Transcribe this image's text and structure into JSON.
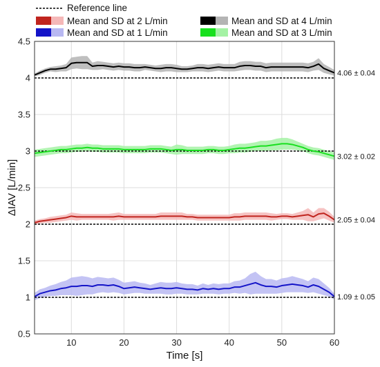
{
  "chart_data": {
    "type": "line",
    "xlabel": "Time [s]",
    "ylabel": "ΔIAV [L/min]",
    "xlim": [
      3,
      60
    ],
    "ylim": [
      0.5,
      4.5
    ],
    "xticks": [
      "10",
      "20",
      "30",
      "40",
      "50",
      "60"
    ],
    "yticks": [
      "0.5",
      "1",
      "1.5",
      "2",
      "2.5",
      "3",
      "3.5",
      "4",
      "4.5"
    ],
    "grid": true,
    "legend_position": "top",
    "reference": {
      "label": "Reference line",
      "values": [
        1,
        2,
        3,
        4
      ]
    },
    "x": [
      3,
      4,
      5,
      6,
      7,
      8,
      9,
      10,
      11,
      12,
      13,
      14,
      15,
      16,
      17,
      18,
      19,
      20,
      21,
      22,
      23,
      24,
      25,
      26,
      27,
      28,
      29,
      30,
      31,
      32,
      33,
      34,
      35,
      36,
      37,
      38,
      39,
      40,
      41,
      42,
      43,
      44,
      45,
      46,
      47,
      48,
      49,
      50,
      51,
      52,
      53,
      54,
      55,
      56,
      57,
      58,
      59,
      60
    ],
    "series": [
      {
        "name": "Mean and SD at 4 L/min",
        "color": "#000000",
        "band_color": "#b4b4b4",
        "annotation": "4.06 ± 0.04",
        "values": [
          4.04,
          4.07,
          4.1,
          4.12,
          4.12,
          4.13,
          4.14,
          4.2,
          4.21,
          4.21,
          4.21,
          4.16,
          4.17,
          4.17,
          4.16,
          4.15,
          4.16,
          4.15,
          4.15,
          4.14,
          4.14,
          4.15,
          4.14,
          4.13,
          4.13,
          4.14,
          4.14,
          4.13,
          4.12,
          4.12,
          4.13,
          4.14,
          4.14,
          4.13,
          4.14,
          4.15,
          4.14,
          4.14,
          4.14,
          4.16,
          4.17,
          4.17,
          4.16,
          4.16,
          4.14,
          4.15,
          4.15,
          4.15,
          4.15,
          4.15,
          4.15,
          4.15,
          4.14,
          4.16,
          4.19,
          4.13,
          4.1,
          4.07
        ],
        "sd": [
          0.02,
          0.03,
          0.03,
          0.03,
          0.04,
          0.04,
          0.05,
          0.08,
          0.08,
          0.09,
          0.09,
          0.05,
          0.06,
          0.05,
          0.05,
          0.05,
          0.05,
          0.05,
          0.05,
          0.05,
          0.05,
          0.04,
          0.04,
          0.04,
          0.05,
          0.05,
          0.05,
          0.05,
          0.04,
          0.04,
          0.04,
          0.05,
          0.05,
          0.05,
          0.05,
          0.05,
          0.05,
          0.05,
          0.05,
          0.06,
          0.06,
          0.06,
          0.06,
          0.06,
          0.06,
          0.06,
          0.06,
          0.06,
          0.06,
          0.06,
          0.06,
          0.06,
          0.06,
          0.06,
          0.08,
          0.06,
          0.05,
          0.04
        ]
      },
      {
        "name": "Mean and SD at 3 L/min",
        "color": "#18e01e",
        "band_color": "#a4f2a4",
        "annotation": "3.02 ± 0.02",
        "values": [
          2.97,
          2.98,
          2.99,
          3.0,
          3.01,
          3.02,
          3.02,
          3.03,
          3.04,
          3.04,
          3.05,
          3.04,
          3.04,
          3.03,
          3.03,
          3.03,
          3.03,
          3.02,
          3.02,
          3.02,
          3.02,
          3.02,
          3.03,
          3.03,
          3.03,
          3.02,
          3.01,
          3.02,
          3.02,
          3.01,
          3.01,
          3.01,
          3.01,
          3.02,
          3.02,
          3.01,
          3.01,
          3.02,
          3.03,
          3.04,
          3.04,
          3.05,
          3.06,
          3.07,
          3.07,
          3.08,
          3.09,
          3.1,
          3.1,
          3.09,
          3.07,
          3.05,
          3.02,
          3.0,
          2.99,
          2.97,
          2.95,
          2.93
        ],
        "sd": [
          0.05,
          0.05,
          0.05,
          0.05,
          0.05,
          0.05,
          0.05,
          0.05,
          0.05,
          0.05,
          0.05,
          0.05,
          0.05,
          0.05,
          0.05,
          0.05,
          0.05,
          0.05,
          0.05,
          0.05,
          0.05,
          0.05,
          0.05,
          0.05,
          0.05,
          0.05,
          0.05,
          0.07,
          0.06,
          0.05,
          0.05,
          0.05,
          0.05,
          0.05,
          0.05,
          0.05,
          0.05,
          0.05,
          0.06,
          0.06,
          0.06,
          0.06,
          0.06,
          0.07,
          0.07,
          0.07,
          0.08,
          0.08,
          0.08,
          0.07,
          0.06,
          0.05,
          0.05,
          0.05,
          0.05,
          0.05,
          0.05,
          0.05
        ]
      },
      {
        "name": "Mean and SD at 2 L/min",
        "color": "#c0241e",
        "band_color": "#f5b8b8",
        "annotation": "2.05 ± 0.04",
        "values": [
          2.02,
          2.04,
          2.05,
          2.06,
          2.07,
          2.08,
          2.09,
          2.11,
          2.1,
          2.1,
          2.1,
          2.1,
          2.1,
          2.1,
          2.1,
          2.1,
          2.11,
          2.1,
          2.1,
          2.1,
          2.1,
          2.1,
          2.1,
          2.1,
          2.11,
          2.11,
          2.11,
          2.11,
          2.11,
          2.1,
          2.1,
          2.09,
          2.09,
          2.09,
          2.09,
          2.09,
          2.09,
          2.09,
          2.1,
          2.1,
          2.11,
          2.11,
          2.11,
          2.11,
          2.11,
          2.1,
          2.1,
          2.11,
          2.11,
          2.1,
          2.11,
          2.12,
          2.13,
          2.1,
          2.14,
          2.15,
          2.11,
          2.06
        ],
        "sd": [
          0.03,
          0.03,
          0.03,
          0.04,
          0.04,
          0.04,
          0.04,
          0.05,
          0.05,
          0.04,
          0.04,
          0.04,
          0.04,
          0.04,
          0.04,
          0.05,
          0.05,
          0.04,
          0.04,
          0.04,
          0.04,
          0.04,
          0.04,
          0.04,
          0.05,
          0.05,
          0.05,
          0.05,
          0.05,
          0.04,
          0.04,
          0.04,
          0.04,
          0.04,
          0.04,
          0.04,
          0.04,
          0.04,
          0.05,
          0.05,
          0.05,
          0.05,
          0.05,
          0.05,
          0.05,
          0.05,
          0.04,
          0.04,
          0.04,
          0.04,
          0.05,
          0.06,
          0.09,
          0.06,
          0.08,
          0.07,
          0.06,
          0.04
        ]
      },
      {
        "name": "Mean and SD at 1 L/min",
        "color": "#1414c8",
        "band_color": "#b8b8f2",
        "annotation": "1.09 ± 0.05",
        "values": [
          1.01,
          1.05,
          1.07,
          1.09,
          1.1,
          1.12,
          1.13,
          1.15,
          1.15,
          1.16,
          1.16,
          1.15,
          1.17,
          1.17,
          1.16,
          1.17,
          1.15,
          1.12,
          1.13,
          1.14,
          1.13,
          1.12,
          1.11,
          1.12,
          1.13,
          1.12,
          1.12,
          1.13,
          1.12,
          1.11,
          1.11,
          1.1,
          1.12,
          1.11,
          1.12,
          1.11,
          1.12,
          1.12,
          1.14,
          1.14,
          1.16,
          1.18,
          1.2,
          1.17,
          1.15,
          1.15,
          1.14,
          1.16,
          1.17,
          1.18,
          1.17,
          1.16,
          1.14,
          1.17,
          1.15,
          1.11,
          1.07,
          1.01
        ],
        "sd": [
          0.05,
          0.06,
          0.06,
          0.07,
          0.08,
          0.09,
          0.1,
          0.12,
          0.13,
          0.13,
          0.12,
          0.11,
          0.11,
          0.1,
          0.1,
          0.1,
          0.09,
          0.08,
          0.08,
          0.08,
          0.07,
          0.07,
          0.06,
          0.07,
          0.08,
          0.08,
          0.08,
          0.08,
          0.07,
          0.07,
          0.07,
          0.06,
          0.07,
          0.06,
          0.07,
          0.07,
          0.07,
          0.07,
          0.08,
          0.09,
          0.1,
          0.14,
          0.15,
          0.12,
          0.1,
          0.1,
          0.09,
          0.1,
          0.1,
          0.11,
          0.1,
          0.09,
          0.08,
          0.1,
          0.1,
          0.08,
          0.06,
          0.04
        ]
      }
    ],
    "legend": [
      {
        "label": "Mean and SD at 2 L/min",
        "series": 2
      },
      {
        "label": "Mean and SD at 4 L/min",
        "series": 0
      },
      {
        "label": "Mean and SD at 1 L/min",
        "series": 3
      },
      {
        "label": "Mean and SD at 3 L/min",
        "series": 1
      }
    ]
  }
}
